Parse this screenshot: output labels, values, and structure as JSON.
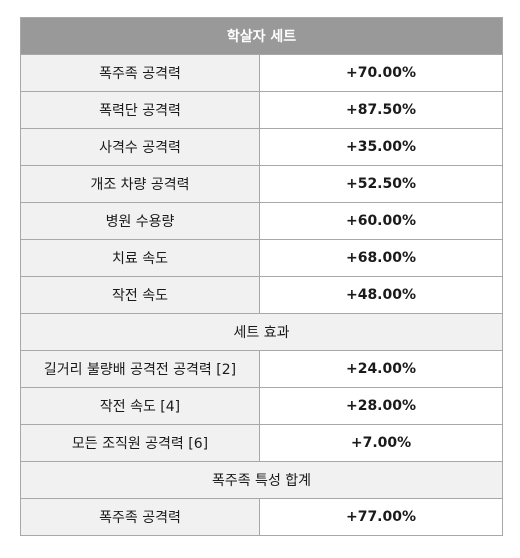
{
  "title": "학살자 세트",
  "rows": [
    {
      "label": "폭주족 공격력",
      "value": "+70.00%"
    },
    {
      "label": "폭력단 공격력",
      "value": "+87.50%"
    },
    {
      "label": "사격수 공격력",
      "value": "+35.00%"
    },
    {
      "label": "개조 차량 공격력",
      "value": "+52.50%"
    },
    {
      "label": "병원 수용량",
      "value": "+60.00%"
    },
    {
      "label": "치료 속도",
      "value": "+68.00%"
    },
    {
      "label": "작전 속도",
      "value": "+48.00%"
    }
  ],
  "set_effect": {
    "header": "세트 효과",
    "rows": [
      {
        "label": "길거리 불량배 공격전 공격력 [2]",
        "value": "+24.00%"
      },
      {
        "label": "작전 속도 [4]",
        "value": "+28.00%"
      },
      {
        "label": "모든 조직원 공격력 [6]",
        "value": "+7.00%"
      }
    ]
  },
  "trait_total": {
    "header": "폭주족 특성 합계",
    "rows": [
      {
        "label": "폭주족 공격력",
        "value": "+77.00%"
      }
    ]
  }
}
